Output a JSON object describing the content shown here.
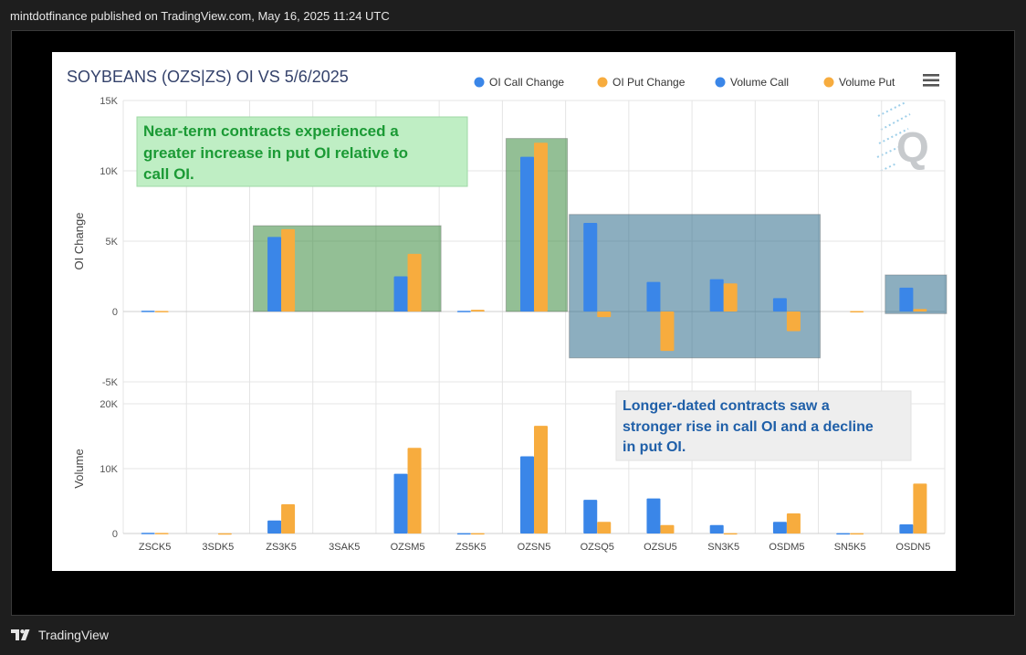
{
  "caption": "mintdotfinance published on TradingView.com, May 16, 2025 11:24 UTC",
  "footer": {
    "brand": "TradingView"
  },
  "colors": {
    "call": "#3a86e8",
    "put": "#f7ac3e",
    "green_box": "#3b8a3e",
    "blue_box": "#2e6b8a",
    "green_text": "#1b9a35",
    "blue_text": "#1f5fa8"
  },
  "annotations": {
    "near_term": "Near-term contracts experienced a greater increase in put OI relative to call OI.",
    "near_term_lines": [
      "Near-term contracts experienced a",
      "greater increase in put OI relative to",
      "call OI."
    ],
    "longer_dated_lines": [
      "Longer-dated contracts saw a",
      "stronger rise in call OI and a decline",
      "in put OI."
    ]
  },
  "chart_data": {
    "type": "bar",
    "title": "SOYBEANS (OZS|ZS) OI VS 5/6/2025",
    "categories": [
      "ZSCK5",
      "3SDK5",
      "ZS3K5",
      "3SAK5",
      "OZSM5",
      "ZS5K5",
      "OZSN5",
      "OZSQ5",
      "OZSU5",
      "SN3K5",
      "OSDM5",
      "SN5K5",
      "OSDN5"
    ],
    "legend": [
      "OI Call Change",
      "OI Put Change",
      "Volume Call",
      "Volume Put"
    ],
    "legend_position": "top-right",
    "panels": [
      {
        "ylabel": "OI Change",
        "ylim": [
          -5000,
          15000
        ],
        "ticks": [
          "15K",
          "10K",
          "5K",
          "0",
          "-5K"
        ],
        "tick_values": [
          15000,
          10000,
          5000,
          0,
          -5000
        ],
        "series": [
          {
            "name": "OI Call Change",
            "values": [
              60,
              0,
              5300,
              0,
              2500,
              50,
              11000,
              6300,
              2100,
              2300,
              950,
              0,
              1700
            ]
          },
          {
            "name": "OI Put Change",
            "values": [
              40,
              0,
              5850,
              0,
              4100,
              120,
              12000,
              -400,
              -2800,
              2000,
              -1400,
              30,
              180
            ]
          }
        ]
      },
      {
        "ylabel": "Volume",
        "ylim": [
          0,
          20000
        ],
        "ticks": [
          "20K",
          "10K",
          "0"
        ],
        "tick_values": [
          20000,
          10000,
          0
        ],
        "series": [
          {
            "name": "Volume Call",
            "values": [
              100,
              0,
              2000,
              0,
              9200,
              50,
              11900,
              5200,
              5400,
              1300,
              1800,
              50,
              1400
            ]
          },
          {
            "name": "Volume Put",
            "values": [
              80,
              40,
              4500,
              0,
              13200,
              60,
              16600,
              1800,
              1300,
              50,
              3100,
              60,
              7700
            ]
          }
        ]
      }
    ],
    "grid": true
  }
}
